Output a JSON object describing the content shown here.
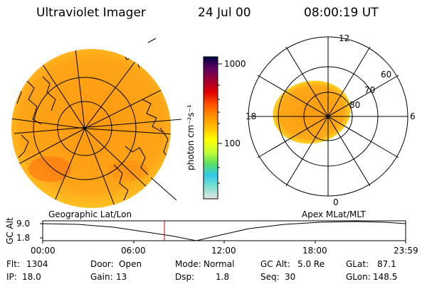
{
  "header": {
    "instrument": "Ultraviolet Imager",
    "date": "24 Jul 00",
    "time": "08:00:19 UT"
  },
  "colorbar": {
    "unit_label": "photon cm⁻²s⁻¹",
    "tick_high": "1000",
    "tick_low": "100",
    "colors": [
      "#e6e6e6",
      "#80e0d0",
      "#30c8e8",
      "#60e060",
      "#c8ff30",
      "#ffff00",
      "#ffc000",
      "#ff9000",
      "#ff5000",
      "#e00000",
      "#a00030",
      "#600060",
      "#000040"
    ]
  },
  "geo_panel": {
    "label": "Geographic Lat/Lon"
  },
  "polar_panel": {
    "label": "Apex MLat/MLT",
    "mlt_labels": [
      "12",
      "18",
      "6",
      "0"
    ],
    "lat_labels": [
      "60",
      "70",
      "80"
    ]
  },
  "altitude_plot": {
    "axis_label": "GC Alt",
    "ticks_y": [
      "9.0",
      "1.8"
    ],
    "ticks_x": [
      "00:00",
      "06:00",
      "12:00",
      "18:00",
      "23:59"
    ],
    "current_time_color": "#cc0000"
  },
  "footer": {
    "flt_label": "Flt:",
    "flt_value": "1304",
    "ip_label": "IP:",
    "ip_value": "18.0",
    "door_label": "Door:",
    "door_value": "Open",
    "gain_label": "Gain:",
    "gain_value": "13",
    "mode_label": "Mode:",
    "mode_value": "Normal",
    "dsp_label": "Dsp:",
    "dsp_value": "1.8",
    "gcalt_label": "GC Alt:",
    "gcalt_value": "5.0 Re",
    "seq_label": "Seq:",
    "seq_value": "30",
    "glat_label": "GLat:",
    "glat_value": "87.1",
    "glon_label": "GLon:",
    "glon_value": "148.5"
  }
}
